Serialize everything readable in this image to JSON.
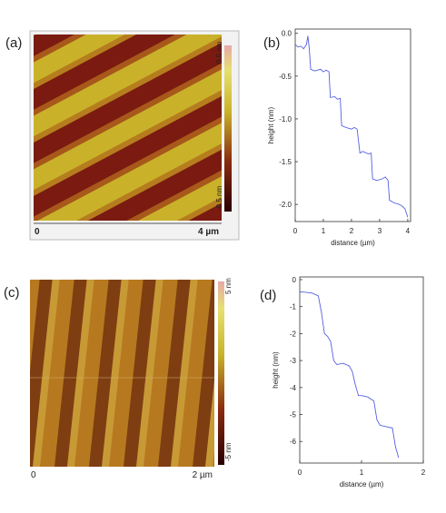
{
  "images": [
    {
      "label": "(a)",
      "scale_start": "0",
      "scale_end": "4 µm",
      "colorbar_max": "0.5 nm",
      "colorbar_min": "-0.5 nm"
    },
    {
      "label": "(c)",
      "scale_start": "0",
      "scale_end": "2 µm",
      "colorbar_max": "5 nm",
      "colorbar_min": "-5 nm"
    }
  ],
  "chart_data": [
    {
      "type": "line",
      "panel_label": "(b)",
      "xlabel": "distance (µm)",
      "ylabel": "height (nm)",
      "color": "#5560e0",
      "x": [
        0,
        0.1,
        0.2,
        0.3,
        0.4,
        0.45,
        0.5,
        0.55,
        0.7,
        0.9,
        1.0,
        1.1,
        1.2,
        1.25,
        1.4,
        1.5,
        1.6,
        1.65,
        1.8,
        2.0,
        2.1,
        2.2,
        2.3,
        2.4,
        2.6,
        2.7,
        2.75,
        2.9,
        3.1,
        3.2,
        3.3,
        3.35,
        3.5,
        3.7,
        3.8,
        3.9,
        4.0
      ],
      "values": [
        -0.13,
        -0.16,
        -0.15,
        -0.18,
        -0.13,
        -0.03,
        -0.18,
        -0.42,
        -0.44,
        -0.42,
        -0.45,
        -0.43,
        -0.45,
        -0.75,
        -0.74,
        -0.77,
        -0.76,
        -1.08,
        -1.1,
        -1.12,
        -1.1,
        -1.12,
        -1.4,
        -1.38,
        -1.41,
        -1.4,
        -1.7,
        -1.72,
        -1.7,
        -1.68,
        -1.72,
        -1.95,
        -1.98,
        -2.0,
        -2.02,
        -2.05,
        -2.15
      ],
      "xlim": [
        0,
        4.1
      ],
      "xticks": [
        0,
        1,
        2,
        3,
        4
      ],
      "ylim": [
        -2.2,
        0.05
      ],
      "yticks": [
        {
          "value": 0,
          "label": "0.0"
        },
        -0.5,
        {
          "value": -1,
          "label": "-1.0"
        },
        -1.5,
        {
          "value": -2,
          "label": "-2.0"
        }
      ]
    },
    {
      "type": "line",
      "panel_label": "(d)",
      "xlabel": "distance (µm)",
      "ylabel": "height (nm)",
      "color": "#5560e0",
      "x": [
        0,
        0.1,
        0.2,
        0.3,
        0.35,
        0.4,
        0.45,
        0.5,
        0.55,
        0.6,
        0.7,
        0.8,
        0.85,
        0.9,
        0.95,
        1.0,
        1.1,
        1.2,
        1.25,
        1.3,
        1.4,
        1.5,
        1.55,
        1.6
      ],
      "values": [
        -0.45,
        -0.47,
        -0.5,
        -0.6,
        -1.2,
        -2.0,
        -2.1,
        -2.3,
        -3.0,
        -3.15,
        -3.1,
        -3.2,
        -3.4,
        -3.9,
        -4.3,
        -4.3,
        -4.35,
        -4.5,
        -5.2,
        -5.4,
        -5.45,
        -5.5,
        -6.2,
        -6.6
      ],
      "xlim": [
        0,
        2
      ],
      "xticks": [
        0,
        1,
        2
      ],
      "ylim": [
        -6.8,
        0.1
      ],
      "yticks": [
        0,
        -1,
        -2,
        -3,
        -4,
        -5,
        -6
      ]
    }
  ]
}
